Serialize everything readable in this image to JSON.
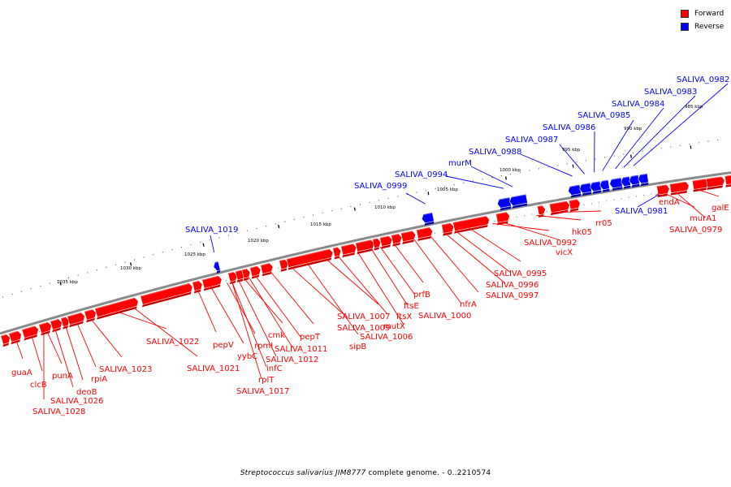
{
  "legend": {
    "forward_label": "Forward",
    "reverse_label": "Reverse",
    "forward_color": "#ff0000",
    "reverse_color": "#0000ff"
  },
  "caption": {
    "organism": "Streptococcus salivarius JIM8777",
    "rest": " complete genome. - 0..2210574"
  },
  "scale_labels": [
    "985 kbp",
    "990 kbp",
    "995 kbp",
    "1000 kbp",
    "1005 kbp",
    "1010 kbp",
    "1015 kbp",
    "1020 kbp",
    "1025 kbp",
    "1030 kbp",
    "1035 kbp"
  ],
  "genes_forward": [
    "guaA",
    "clcB",
    "punA",
    "SALIVA_1028",
    "SALIVA_1026",
    "deoB",
    "rpiA",
    "SALIVA_1023",
    "SALIVA_1022",
    "SALIVA_1021",
    "pepV",
    "yybC",
    "rpmI",
    "rplT",
    "SALIVA_1017",
    "infC",
    "cmk",
    "SALIVA_1012",
    "SALIVA_1011",
    "pepT",
    "SALIVA_1009",
    "sipB",
    "SALIVA_1007",
    "mutX",
    "SALIVA_1006",
    "ftsX",
    "ftsE",
    "prfB",
    "SALIVA_1000",
    "nfrA",
    "SALIVA_0997",
    "SALIVA_0996",
    "SALIVA_0995",
    "SALIVA_0992",
    "vicX",
    "hk05",
    "rr05",
    "endA",
    "murA1",
    "SALIVA_0979",
    "galE"
  ],
  "genes_reverse": [
    "SALIVA_1019",
    "SALIVA_0999",
    "SALIVA_0994",
    "murM",
    "SALIVA_0988",
    "SALIVA_0987",
    "SALIVA_0986",
    "SALIVA_0985",
    "SALIVA_0984",
    "SALIVA_0983",
    "SALIVA_0982",
    "SALIVA_0981"
  ]
}
